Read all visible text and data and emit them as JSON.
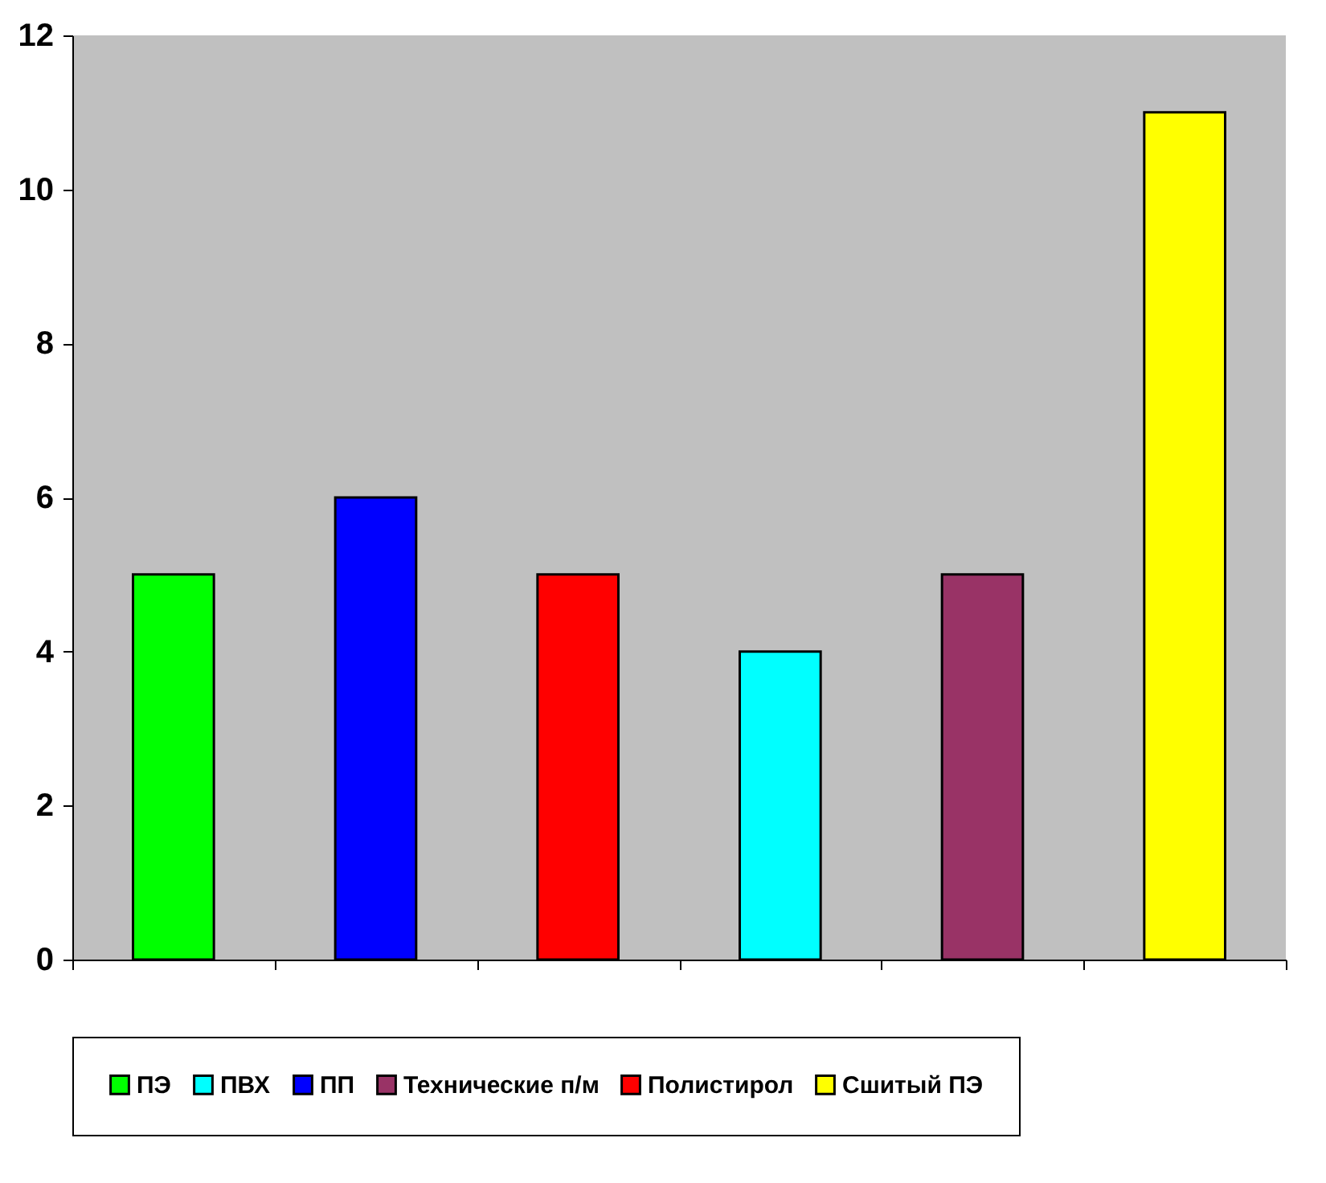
{
  "chart_data": {
    "type": "bar",
    "categories": [
      null,
      null,
      null,
      null,
      null,
      null
    ],
    "series": [
      {
        "name": "ПЭ",
        "color": "#00ff00",
        "values": [
          5,
          null,
          null,
          null,
          null,
          null
        ]
      },
      {
        "name": "ПВХ",
        "color": "#00ffff",
        "values": [
          null,
          null,
          null,
          4,
          null,
          null
        ]
      },
      {
        "name": "ПП",
        "color": "#0000ff",
        "values": [
          null,
          6,
          null,
          null,
          null,
          null
        ]
      },
      {
        "name": "Технические п/м",
        "color": "#993366",
        "values": [
          null,
          null,
          null,
          null,
          5,
          null
        ]
      },
      {
        "name": "Полистирол",
        "color": "#ff0000",
        "values": [
          null,
          null,
          5,
          null,
          null,
          null
        ]
      },
      {
        "name": "Сшитый ПЭ",
        "color": "#ffff00",
        "values": [
          null,
          null,
          null,
          null,
          null,
          11
        ]
      }
    ],
    "ylim": [
      0,
      12
    ],
    "yticks": [
      0,
      2,
      4,
      6,
      8,
      10,
      12
    ],
    "grid": false,
    "legend": "bottom"
  }
}
